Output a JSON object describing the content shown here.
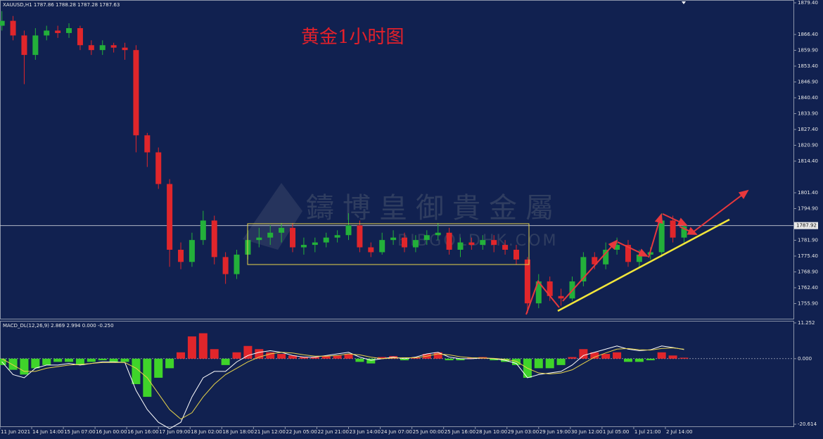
{
  "chart_data": [
    {
      "type": "candlestick",
      "symbol_info": "XAUUSD,H1  1787.86 1788.28 1787.28 1787.63",
      "title": "黄金1小时图",
      "watermark": "鑄博皇御貴金屬",
      "watermark_url": "BIBGOLDHK.COM",
      "x": [
        1,
        7,
        13,
        19,
        25,
        31,
        37,
        43,
        49,
        55,
        61,
        67,
        73,
        79,
        85,
        91,
        97,
        103,
        109,
        115,
        121,
        127,
        133,
        139,
        145,
        151,
        157,
        163,
        169,
        175,
        181,
        187,
        193,
        199,
        205,
        211,
        217,
        223,
        229,
        235,
        241,
        247,
        253,
        259,
        265,
        271,
        277,
        283,
        289,
        295,
        301,
        307,
        313,
        319,
        325,
        331,
        337,
        343,
        349,
        355,
        361,
        367
      ],
      "open": [
        1870,
        1872,
        1866,
        1858,
        1866,
        1868,
        1867,
        1869,
        1862,
        1860,
        1862,
        1861,
        1860,
        1825,
        1818,
        1805,
        1778,
        1773,
        1782,
        1790,
        1775,
        1768,
        1776,
        1782,
        1783,
        1785,
        1787,
        1779,
        1780,
        1781,
        1783,
        1784,
        1788,
        1779,
        1777,
        1782,
        1783,
        1779,
        1782,
        1784,
        1785,
        1778,
        1781,
        1780,
        1782,
        1780,
        1778,
        1774,
        1756,
        1765,
        1759,
        1758,
        1765,
        1775,
        1772,
        1778,
        1780,
        1773,
        1776,
        1777,
        1790,
        1783
      ],
      "high": [
        1876,
        1874,
        1868,
        1869,
        1870,
        1870,
        1871,
        1870,
        1864,
        1864,
        1863,
        1863,
        1862,
        1826,
        1820,
        1807,
        1781,
        1785,
        1794,
        1792,
        1777,
        1778,
        1786,
        1787,
        1788,
        1789,
        1789,
        1783,
        1783,
        1785,
        1786,
        1793,
        1790,
        1781,
        1785,
        1786,
        1785,
        1784,
        1786,
        1789,
        1787,
        1783,
        1783,
        1784,
        1784,
        1782,
        1780,
        1775,
        1768,
        1767,
        1762,
        1767,
        1777,
        1777,
        1781,
        1783,
        1782,
        1778,
        1779,
        1793,
        1792,
        1788.28
      ],
      "low": [
        1868,
        1864,
        1846,
        1856,
        1864,
        1865,
        1865,
        1860,
        1858,
        1858,
        1859,
        1856,
        1818,
        1812,
        1803,
        1771,
        1770,
        1771,
        1780,
        1772,
        1764,
        1766,
        1774,
        1779,
        1780,
        1781,
        1777,
        1776,
        1777,
        1779,
        1781,
        1782,
        1777,
        1775,
        1776,
        1780,
        1777,
        1777,
        1780,
        1782,
        1776,
        1775,
        1778,
        1778,
        1777,
        1776,
        1772,
        1752,
        1754,
        1757,
        1755,
        1757,
        1763,
        1770,
        1770,
        1776,
        1771,
        1771,
        1774,
        1775,
        1781,
        1781
      ],
      "close": [
        1872,
        1866,
        1858,
        1866,
        1868,
        1867,
        1869,
        1862,
        1860,
        1862,
        1861,
        1860,
        1825,
        1818,
        1805,
        1778,
        1773,
        1782,
        1790,
        1775,
        1768,
        1776,
        1782,
        1783,
        1785,
        1787,
        1779,
        1780,
        1781,
        1783,
        1784,
        1788,
        1779,
        1777,
        1782,
        1783,
        1779,
        1782,
        1784,
        1785,
        1778,
        1781,
        1780,
        1782,
        1780,
        1778,
        1774,
        1756,
        1765,
        1759,
        1758,
        1765,
        1775,
        1772,
        1778,
        1780,
        1773,
        1776,
        1777,
        1790,
        1783,
        1787.63
      ],
      "up_color": "#23b03a",
      "down_color": "#e0262b",
      "background": "#112150",
      "current_price": 1787.92,
      "ylim": [
        1749.69,
        1880.56
      ],
      "yticks": [
        {
          "value": 1879.4,
          "label": "1879.40"
        },
        {
          "value": 1866.4,
          "label": "1866.40"
        },
        {
          "value": 1859.9,
          "label": "1859.90"
        },
        {
          "value": 1853.4,
          "label": "1853.40"
        },
        {
          "value": 1846.9,
          "label": "1846.90"
        },
        {
          "value": 1840.4,
          "label": "1840.40"
        },
        {
          "value": 1833.9,
          "label": "1833.90"
        },
        {
          "value": 1827.4,
          "label": "1827.40"
        },
        {
          "value": 1820.9,
          "label": "1820.90"
        },
        {
          "value": 1814.4,
          "label": "1814.40"
        },
        {
          "value": 1801.4,
          "label": "1801.40"
        },
        {
          "value": 1794.9,
          "label": "1794.90"
        },
        {
          "value": 1781.9,
          "label": "1781.90"
        },
        {
          "value": 1775.4,
          "label": "1775.40"
        },
        {
          "value": 1768.9,
          "label": "1768.90"
        },
        {
          "value": 1762.4,
          "label": "1762.40"
        },
        {
          "value": 1755.9,
          "label": "1755.90"
        }
      ],
      "xlim": [
        0,
        425.7
      ],
      "xticks": [
        {
          "value": 0,
          "label": "11 Jun 2021"
        },
        {
          "value": 17,
          "label": "14 Jun 14:00"
        },
        {
          "value": 34,
          "label": "15 Jun 07:00"
        },
        {
          "value": 51,
          "label": "16 Jun 00:00"
        },
        {
          "value": 68,
          "label": "16 Jun 16:00"
        },
        {
          "value": 85,
          "label": "17 Jun 09:00"
        },
        {
          "value": 102,
          "label": "18 Jun 02:00"
        },
        {
          "value": 119,
          "label": "18 Jun 18:00"
        },
        {
          "value": 136,
          "label": "21 Jun 12:00"
        },
        {
          "value": 153,
          "label": "22 Jun 05:00"
        },
        {
          "value": 170,
          "label": "22 Jun 21:00"
        },
        {
          "value": 187,
          "label": "23 Jun 14:00"
        },
        {
          "value": 204,
          "label": "24 Jun 07:00"
        },
        {
          "value": 221,
          "label": "25 Jun 00:00"
        },
        {
          "value": 238,
          "label": "25 Jun 16:00"
        },
        {
          "value": 255,
          "label": "28 Jun 10:00"
        },
        {
          "value": 272,
          "label": "29 Jun 03:00"
        },
        {
          "value": 289,
          "label": "29 Jun 19:00"
        },
        {
          "value": 306,
          "label": "30 Jun 12:00"
        },
        {
          "value": 323,
          "label": "1 Jul 05:00"
        },
        {
          "value": 340,
          "label": "1 Jul 21:00"
        },
        {
          "value": 357,
          "label": "2 Jul 14:00"
        }
      ]
    },
    {
      "type": "macd",
      "title": "MACD_DL(12,26,9) 2.869 2.994 0.000 -0.250",
      "x": [
        1,
        7,
        13,
        19,
        25,
        31,
        37,
        43,
        49,
        55,
        61,
        67,
        73,
        79,
        85,
        91,
        97,
        103,
        109,
        115,
        121,
        127,
        133,
        139,
        145,
        151,
        157,
        163,
        169,
        175,
        181,
        187,
        193,
        199,
        205,
        211,
        217,
        223,
        229,
        235,
        241,
        247,
        253,
        259,
        265,
        271,
        277,
        283,
        289,
        295,
        301,
        307,
        313,
        319,
        325,
        331,
        337,
        343,
        349,
        355,
        361,
        367
      ],
      "histogram": [
        -2,
        -3.5,
        -5,
        -3,
        -2,
        -1,
        -1,
        -2,
        -1,
        -0.5,
        -1,
        -1,
        -8,
        -12,
        -6,
        -3,
        2,
        7,
        8,
        3,
        -2,
        2,
        4,
        3,
        2,
        1.5,
        1,
        0.5,
        0.5,
        0.8,
        1,
        1.5,
        -1,
        -1.5,
        0.5,
        0.8,
        -0.5,
        0.5,
        1.5,
        2,
        -0.5,
        -0.5,
        0.3,
        0.5,
        -0.5,
        -1,
        -2,
        -6,
        -3,
        -3,
        -2,
        0.5,
        3,
        2,
        1.5,
        2,
        -1,
        -1,
        -0.5,
        2,
        1,
        0.3
      ],
      "pos_color": "#e0262b",
      "neg_color": "#3fd42a",
      "macd_line": {
        "color": "#ffffff",
        "values": [
          -1,
          -5,
          -6,
          -3,
          -2,
          -2,
          -1.5,
          -2,
          -1.5,
          -1,
          -1,
          -1.2,
          -10,
          -16,
          -20,
          -22,
          -20,
          -12,
          -6,
          -4,
          -4,
          -1,
          1,
          2,
          2.5,
          2,
          1,
          0.5,
          0.5,
          1,
          1.5,
          2,
          0.5,
          -0.5,
          0,
          0.5,
          0,
          0.5,
          1.5,
          2,
          0.5,
          0,
          0,
          0.2,
          0,
          -0.5,
          -1.5,
          -6,
          -5,
          -4.5,
          -4,
          -2,
          1,
          2,
          3,
          4,
          3,
          2.5,
          2.8,
          4,
          3.5,
          2.87
        ]
      },
      "signal_line": {
        "color": "#e8d44a",
        "values": [
          0,
          -2,
          -4,
          -4,
          -3,
          -2.5,
          -2,
          -1.8,
          -1.5,
          -1.2,
          -1.2,
          -1.2,
          -3,
          -6,
          -11,
          -16,
          -19,
          -17,
          -12,
          -8,
          -5,
          -3,
          -1,
          0.5,
          1.5,
          2,
          1.8,
          1.2,
          0.8,
          0.8,
          1,
          1.5,
          1.2,
          0.5,
          0,
          0.2,
          0.3,
          0.3,
          0.8,
          1.5,
          1.2,
          0.6,
          0.3,
          0.2,
          0.1,
          -0.2,
          -0.8,
          -3,
          -4.5,
          -4.8,
          -4.5,
          -3.5,
          -1.5,
          0.5,
          1.8,
          3,
          3.2,
          2.8,
          2.7,
          3.2,
          3.4,
          2.99
        ]
      },
      "xlim": [
        0,
        425.7
      ],
      "ylim": [
        -21.28,
        11.69
      ],
      "yticks": [
        11.252,
        {
          "value": 0,
          "label": "0.000"
        },
        -20.614
      ]
    }
  ]
}
